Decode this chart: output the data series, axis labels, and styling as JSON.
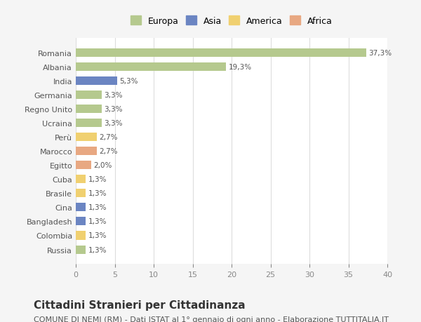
{
  "categories": [
    "Romania",
    "Albania",
    "India",
    "Germania",
    "Regno Unito",
    "Ucraina",
    "Perù",
    "Marocco",
    "Egitto",
    "Cuba",
    "Brasile",
    "Cina",
    "Bangladesh",
    "Colombia",
    "Russia"
  ],
  "values": [
    37.3,
    19.3,
    5.3,
    3.3,
    3.3,
    3.3,
    2.7,
    2.7,
    2.0,
    1.3,
    1.3,
    1.3,
    1.3,
    1.3,
    1.3
  ],
  "labels": [
    "37,3%",
    "19,3%",
    "5,3%",
    "3,3%",
    "3,3%",
    "3,3%",
    "2,7%",
    "2,7%",
    "2,0%",
    "1,3%",
    "1,3%",
    "1,3%",
    "1,3%",
    "1,3%",
    "1,3%"
  ],
  "colors": [
    "#b5c98e",
    "#b5c98e",
    "#6b85c2",
    "#b5c98e",
    "#b5c98e",
    "#b5c98e",
    "#f0d070",
    "#e8a882",
    "#e8a882",
    "#f0d070",
    "#f0d070",
    "#6b85c2",
    "#6b85c2",
    "#f0d070",
    "#b5c98e"
  ],
  "legend_labels": [
    "Europa",
    "Asia",
    "America",
    "Africa"
  ],
  "legend_colors": [
    "#b5c98e",
    "#6b85c2",
    "#f0d070",
    "#e8a882"
  ],
  "xlim": [
    0,
    40
  ],
  "xticks": [
    0,
    5,
    10,
    15,
    20,
    25,
    30,
    35,
    40
  ],
  "title": "Cittadini Stranieri per Cittadinanza",
  "subtitle": "COMUNE DI NEMI (RM) - Dati ISTAT al 1° gennaio di ogni anno - Elaborazione TUTTITALIA.IT",
  "bg_color": "#f5f5f5",
  "plot_bg_color": "#ffffff",
  "grid_color": "#dddddd",
  "title_fontsize": 11,
  "subtitle_fontsize": 8,
  "bar_height": 0.6
}
